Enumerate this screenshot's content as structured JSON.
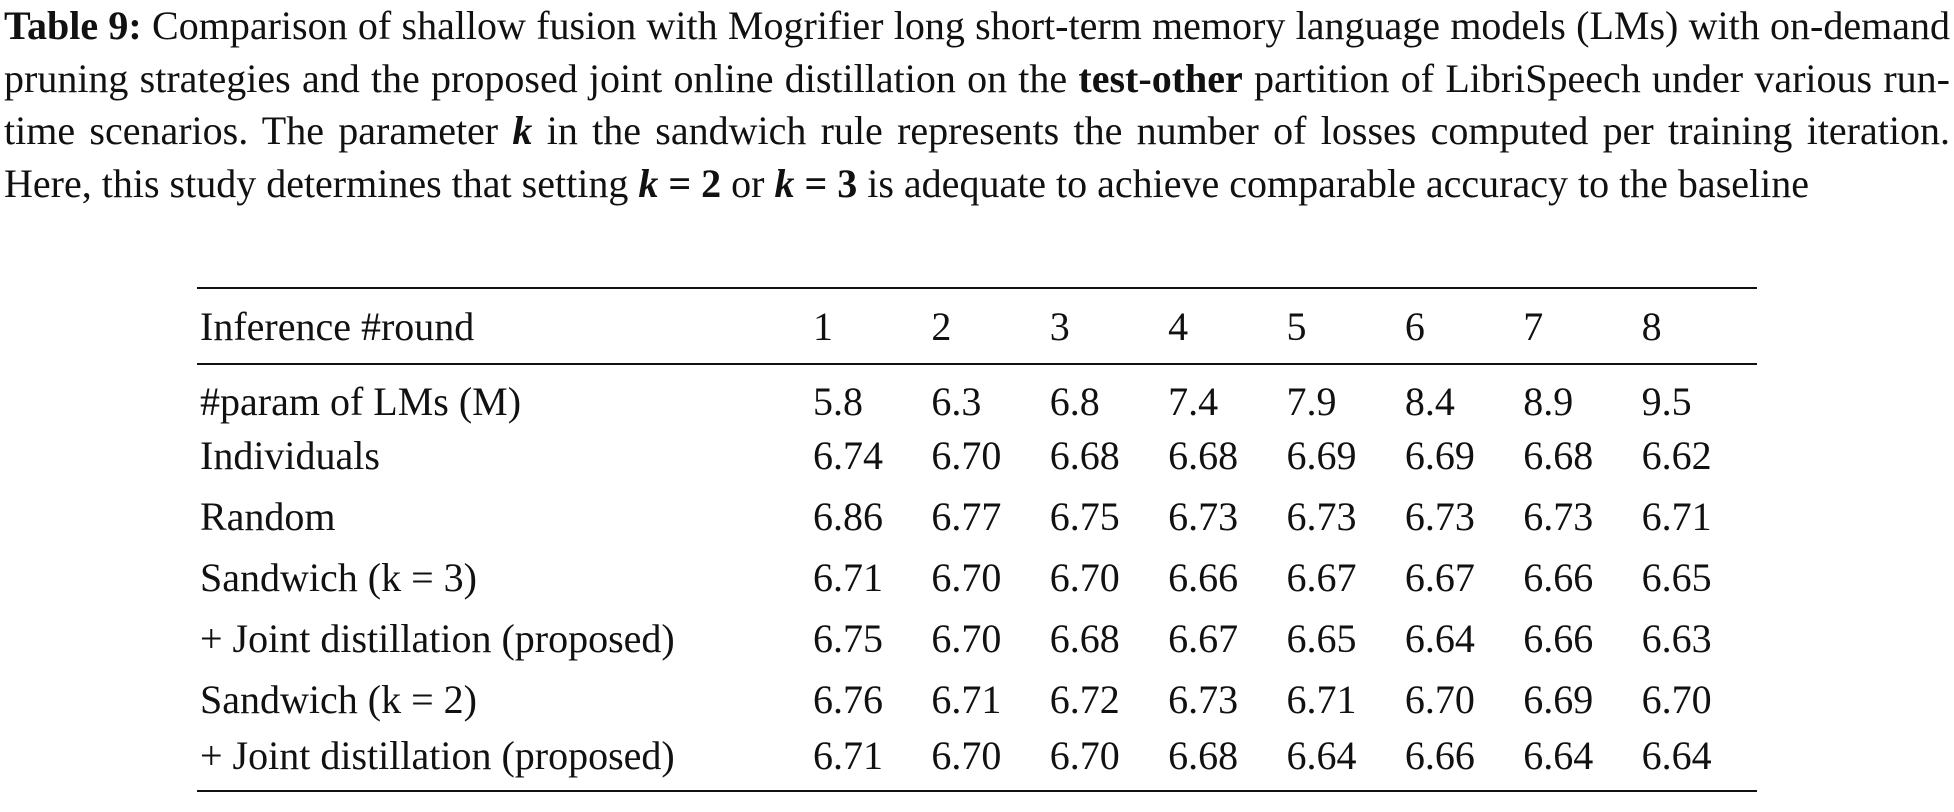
{
  "caption": {
    "segments": [
      {
        "text": "Table 9:",
        "bold": true,
        "italic": false
      },
      {
        "text": " Comparison of shallow fusion with Mogrifier long short-term memory language models (LMs) with on-demand pruning strategies and the proposed joint online distillation on the ",
        "bold": false,
        "italic": false
      },
      {
        "text": "test-other",
        "bold": true,
        "italic": false
      },
      {
        "text": " partition of LibriSpeech under various run-time scenarios. The parameter ",
        "bold": false,
        "italic": false
      },
      {
        "text": "k",
        "bold": true,
        "italic": true
      },
      {
        "text": " in the sandwich rule represents the number of losses computed per training iteration. Here, this study determines that setting ",
        "bold": false,
        "italic": false
      },
      {
        "text": "k",
        "bold": true,
        "italic": true
      },
      {
        "text": " = 2",
        "bold": true,
        "italic": false
      },
      {
        "text": " or ",
        "bold": false,
        "italic": false
      },
      {
        "text": "k",
        "bold": true,
        "italic": true
      },
      {
        "text": " = 3",
        "bold": true,
        "italic": false
      },
      {
        "text": " is adequate to achieve comparable accuracy to the baseline",
        "bold": false,
        "italic": false
      }
    ]
  },
  "table": {
    "header": [
      "Inference #round",
      "1",
      "2",
      "3",
      "4",
      "5",
      "6",
      "7",
      "8"
    ],
    "rows": [
      {
        "label": "#param of LMs (M)",
        "values": [
          "5.8",
          "6.3",
          "6.8",
          "7.4",
          "7.9",
          "8.4",
          "8.9",
          "9.5"
        ],
        "bold": false
      },
      {
        "label": "Individuals",
        "values": [
          "6.74",
          "6.70",
          "6.68",
          "6.68",
          "6.69",
          "6.69",
          "6.68",
          "6.62"
        ],
        "bold": false
      },
      {
        "label": "Random",
        "values": [
          "6.86",
          "6.77",
          "6.75",
          "6.73",
          "6.73",
          "6.73",
          "6.73",
          "6.71"
        ],
        "bold": false
      },
      {
        "label": "Sandwich (k = 3)",
        "values": [
          "6.71",
          "6.70",
          "6.70",
          "6.66",
          "6.67",
          "6.67",
          "6.66",
          "6.65"
        ],
        "bold": false
      },
      {
        "label": "+ Joint distillation (proposed)",
        "values": [
          "6.75",
          "6.70",
          "6.68",
          "6.67",
          "6.65",
          "6.64",
          "6.66",
          "6.63"
        ],
        "bold": true
      },
      {
        "label": "Sandwich (k = 2)",
        "values": [
          "6.76",
          "6.71",
          "6.72",
          "6.73",
          "6.71",
          "6.70",
          "6.69",
          "6.70"
        ],
        "bold": false
      },
      {
        "label": "+ Joint distillation (proposed)",
        "values": [
          "6.71",
          "6.70",
          "6.70",
          "6.68",
          "6.64",
          "6.66",
          "6.64",
          "6.64"
        ],
        "bold": true
      }
    ]
  }
}
